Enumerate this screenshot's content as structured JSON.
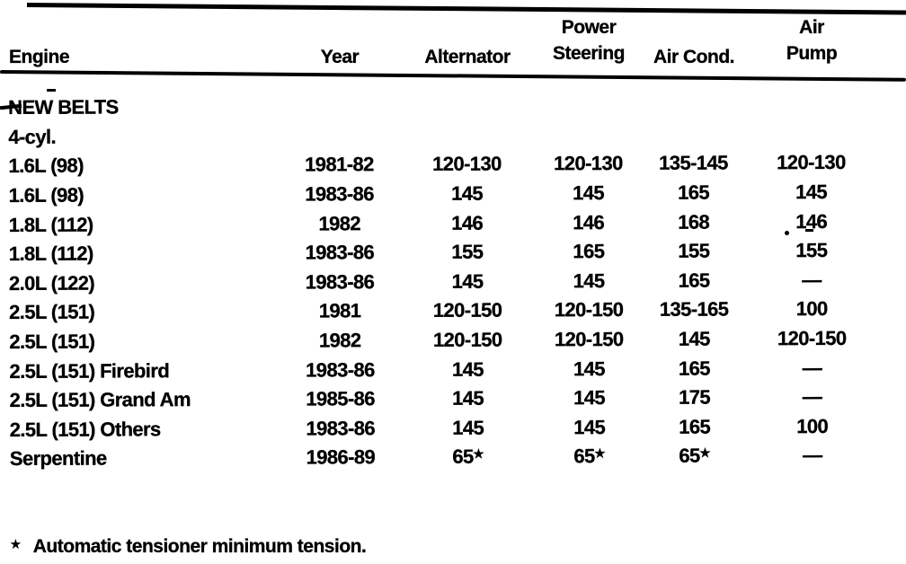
{
  "table": {
    "columns": [
      {
        "label": "Engine"
      },
      {
        "label": "Year"
      },
      {
        "label": "Alternator"
      },
      {
        "label": "Power Steering",
        "line1": "Power",
        "line2": "Steering"
      },
      {
        "label": "Air Cond."
      },
      {
        "label": "Air Pump",
        "line1": "Air",
        "line2": "Pump"
      }
    ],
    "section_label": "NEW BELTS",
    "subsection_label": "4-cyl.",
    "rows": [
      {
        "engine": "1.6L (98)",
        "year": "1981-82",
        "alternator": "120-130",
        "power_steering": "120-130",
        "air_cond": "135-145",
        "air_pump": "120-130"
      },
      {
        "engine": "1.6L (98)",
        "year": "1983-86",
        "alternator": "145",
        "power_steering": "145",
        "air_cond": "165",
        "air_pump": "145"
      },
      {
        "engine": "1.8L (112)",
        "year": "1982",
        "alternator": "146",
        "power_steering": "146",
        "air_cond": "168",
        "air_pump": "146"
      },
      {
        "engine": "1.8L (112)",
        "year": "1983-86",
        "alternator": "155",
        "power_steering": "165",
        "air_cond": "155",
        "air_pump": "155"
      },
      {
        "engine": "2.0L (122)",
        "year": "1983-86",
        "alternator": "145",
        "power_steering": "145",
        "air_cond": "165",
        "air_pump": "—"
      },
      {
        "engine": "2.5L (151)",
        "year": "1981",
        "alternator": "120-150",
        "power_steering": "120-150",
        "air_cond": "135-165",
        "air_pump": "100"
      },
      {
        "engine": "2.5L (151)",
        "year": "1982",
        "alternator": "120-150",
        "power_steering": "120-150",
        "air_cond": "145",
        "air_pump": "120-150"
      },
      {
        "engine": "2.5L (151) Firebird",
        "year": "1983-86",
        "alternator": "145",
        "power_steering": "145",
        "air_cond": "165",
        "air_pump": "—"
      },
      {
        "engine": "2.5L (151) Grand Am",
        "year": "1985-86",
        "alternator": "145",
        "power_steering": "145",
        "air_cond": "175",
        "air_pump": "—"
      },
      {
        "engine": "2.5L (151) Others",
        "year": "1983-86",
        "alternator": "145",
        "power_steering": "145",
        "air_cond": "165",
        "air_pump": "100"
      },
      {
        "engine": "Serpentine",
        "year": "1986-89",
        "alternator": "65",
        "power_steering": "65",
        "air_cond": "65",
        "air_pump": "—"
      }
    ],
    "footnote": {
      "marker": "★",
      "text": "Automatic tensioner minimum tension."
    }
  }
}
